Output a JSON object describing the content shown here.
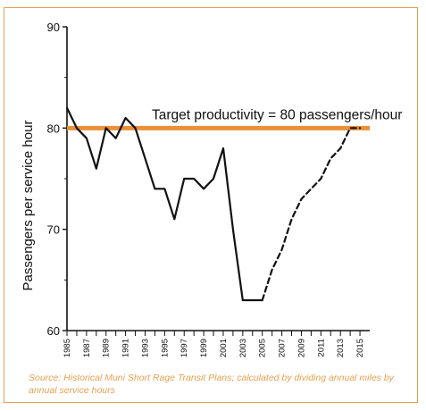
{
  "chart_data": {
    "type": "line",
    "title": "",
    "xlabel": "",
    "ylabel": "Passengers per service hour",
    "xlim": [
      1985,
      2016
    ],
    "ylim": [
      60,
      90
    ],
    "y_ticks": [
      60,
      70,
      80,
      90
    ],
    "x_ticks": [
      "1985",
      "1987",
      "1989",
      "1991",
      "1993",
      "1995",
      "1997",
      "1999",
      "2001",
      "2003",
      "2005",
      "2007",
      "2009",
      "2011",
      "2013",
      "2015"
    ],
    "series": [
      {
        "style": "solid",
        "color": "#111111",
        "x": [
          1985,
          1986,
          1987,
          1988,
          1989,
          1990,
          1991,
          1992,
          1993,
          1994,
          1995,
          1996,
          1997,
          1998,
          1999,
          2000,
          2001,
          2002,
          2003,
          2004,
          2005
        ],
        "y": [
          82,
          80,
          79,
          76,
          80,
          79,
          81,
          80,
          77,
          74,
          74,
          71,
          75,
          75,
          74,
          75,
          78,
          70,
          63,
          63,
          63
        ]
      },
      {
        "style": "dashed",
        "color": "#111111",
        "x": [
          2005,
          2006,
          2007,
          2008,
          2009,
          2010,
          2011,
          2012,
          2013,
          2014,
          2015
        ],
        "y": [
          63,
          66,
          68,
          71,
          73,
          74,
          75,
          77,
          78,
          80,
          80
        ]
      }
    ],
    "reference_line": {
      "value": 80,
      "label": "Target productivity = 80 passengers/hour",
      "color": "#e8913a"
    },
    "grid": false
  },
  "caption": "Source: Historical Muni Short Rage Transit Plans; calculated by dividing annual miles by annual service hours",
  "colors": {
    "frame": "#e8a050",
    "caption": "#e8a050",
    "target_line": "#e8913a"
  }
}
